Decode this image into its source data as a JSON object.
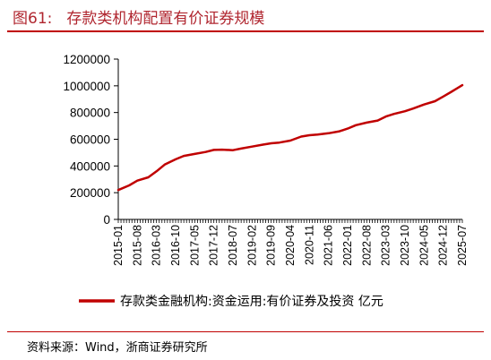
{
  "figure": {
    "number": "图61:",
    "title": "存款类机构配置有价证券规模"
  },
  "source": "资料来源：Wind，浙商证券研究所",
  "colors": {
    "line": "#c00000",
    "title": "#b0262f",
    "axis": "#000000"
  },
  "chart_data": {
    "type": "line",
    "title": "",
    "xlabel": "",
    "ylabel": "",
    "ylim": [
      0,
      1200000
    ],
    "yticks": [
      0,
      200000,
      400000,
      600000,
      800000,
      1000000,
      1200000
    ],
    "ytick_labels": [
      "0",
      "200000",
      "400000",
      "600000",
      "800000",
      "1000000",
      "1200000"
    ],
    "xticks": [
      "2015-01",
      "2015-08",
      "2016-03",
      "2016-10",
      "2017-05",
      "2017-12",
      "2018-07",
      "2019-02",
      "2019-09",
      "2020-04",
      "2020-11",
      "2021-06",
      "2022-01",
      "2022-08",
      "2023-03",
      "2023-10",
      "2024-05",
      "2024-12",
      "2025-07"
    ],
    "grid": false,
    "legend_position": "bottom",
    "series": [
      {
        "name": "存款类金融机构:资金运用:有价证券及投资 亿元",
        "x": [
          "2015-01",
          "2015-05",
          "2015-08",
          "2015-12",
          "2016-03",
          "2016-06",
          "2016-10",
          "2017-01",
          "2017-05",
          "2017-09",
          "2017-12",
          "2018-03",
          "2018-07",
          "2018-10",
          "2019-02",
          "2019-06",
          "2019-09",
          "2019-12",
          "2020-04",
          "2020-08",
          "2020-11",
          "2021-02",
          "2021-06",
          "2021-10",
          "2022-01",
          "2022-04",
          "2022-08",
          "2022-12",
          "2023-03",
          "2023-06",
          "2023-10",
          "2024-01",
          "2024-05",
          "2024-09",
          "2024-12",
          "2025-03",
          "2025-07"
        ],
        "values": [
          220000,
          255000,
          290000,
          315000,
          360000,
          410000,
          450000,
          475000,
          490000,
          505000,
          520000,
          522000,
          518000,
          530000,
          545000,
          560000,
          570000,
          575000,
          590000,
          620000,
          630000,
          635000,
          645000,
          660000,
          680000,
          705000,
          725000,
          740000,
          770000,
          790000,
          810000,
          830000,
          860000,
          885000,
          920000,
          955000,
          1005000
        ]
      }
    ]
  }
}
